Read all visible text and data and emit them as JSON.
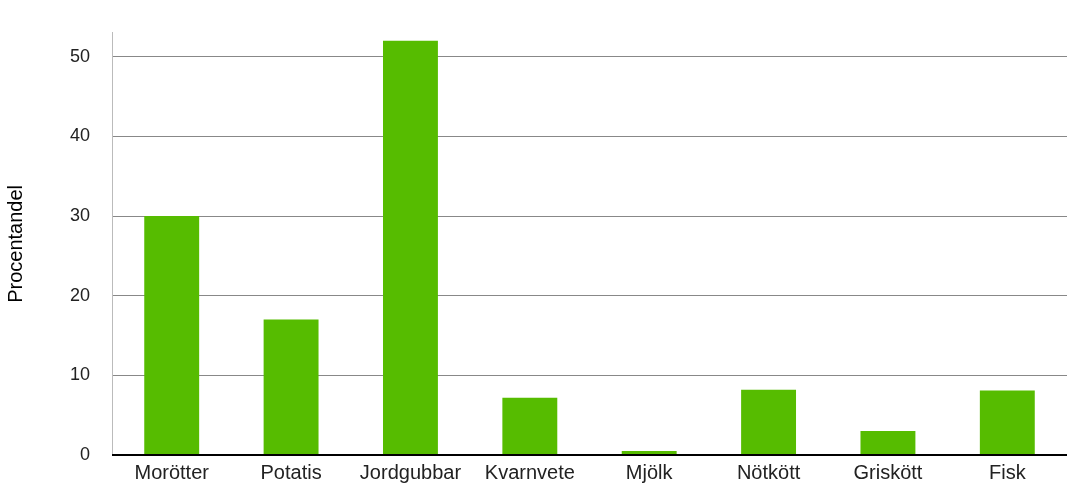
{
  "chart_data": {
    "type": "bar",
    "ylabel": "Procentandel",
    "categories": [
      "Morötter",
      "Potatis",
      "Jordgubbar",
      "Kvarnvete",
      "Mjölk",
      "Nötkött",
      "Griskött",
      "Fisk"
    ],
    "values": [
      30,
      17,
      52,
      7.2,
      0.5,
      8.2,
      3,
      8.1
    ],
    "color": "#56bc00",
    "ylim": [
      0,
      53
    ],
    "yticks": [
      0,
      10,
      20,
      30,
      40,
      50
    ],
    "grid": "y",
    "legend": false
  }
}
